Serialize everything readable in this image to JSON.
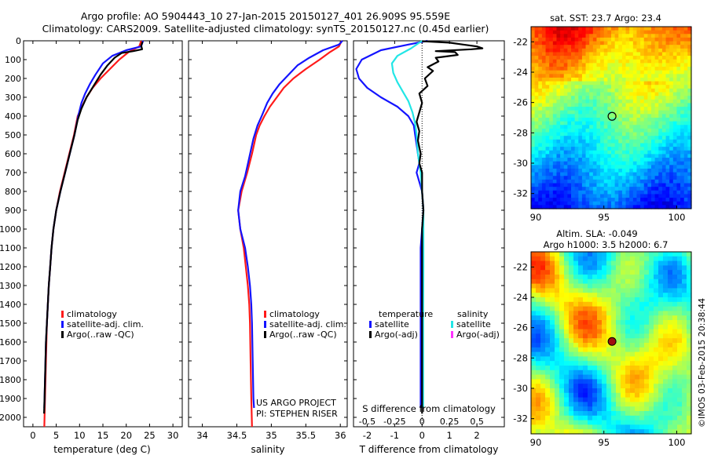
{
  "header": {
    "line1": "Argo profile: AO 5904443_10 27-Jan-2015 20150127_401 26.909S 95.559E",
    "line2": "Climatology: CARS2009. Satellite-adjusted climatology: synTS_20150127.nc (0.45d earlier)"
  },
  "colors": {
    "climatology": "#ff1a1a",
    "satellite": "#1414ff",
    "argo": "#000000",
    "sat_salinity": "#22e6e6",
    "argo_salinity": "#ff33ff"
  },
  "chart_data": [
    {
      "type": "line",
      "id": "temperature",
      "xlabel": "temperature (deg C)",
      "xlim": [
        -2,
        32
      ],
      "xticks": [
        0,
        5,
        10,
        15,
        20,
        25,
        30
      ],
      "ylim": [
        2050,
        0
      ],
      "yticks": [
        0,
        100,
        200,
        300,
        400,
        500,
        600,
        700,
        800,
        900,
        1000,
        1100,
        1200,
        1300,
        1400,
        1500,
        1600,
        1700,
        1800,
        1900,
        2000
      ],
      "legend": [
        "climatology",
        "satellite-adj. clim.",
        "Argo(..raw -QC)"
      ],
      "series": [
        {
          "name": "climatology",
          "color_key": "climatology",
          "points": [
            [
              23.2,
              0
            ],
            [
              22.8,
              30
            ],
            [
              20.5,
              60
            ],
            [
              18.5,
              100
            ],
            [
              16.5,
              150
            ],
            [
              14.5,
              200
            ],
            [
              12.8,
              250
            ],
            [
              11.5,
              300
            ],
            [
              10.5,
              350
            ],
            [
              9.6,
              400
            ],
            [
              8.8,
              500
            ],
            [
              7.8,
              600
            ],
            [
              6.8,
              700
            ],
            [
              5.8,
              800
            ],
            [
              5.0,
              900
            ],
            [
              4.4,
              1000
            ],
            [
              4.0,
              1100
            ],
            [
              3.7,
              1200
            ],
            [
              3.4,
              1300
            ],
            [
              3.2,
              1400
            ],
            [
              3.0,
              1500
            ],
            [
              2.9,
              1600
            ],
            [
              2.8,
              1700
            ],
            [
              2.7,
              1800
            ],
            [
              2.6,
              1900
            ],
            [
              2.5,
              2000
            ],
            [
              2.45,
              2050
            ]
          ]
        },
        {
          "name": "satellite-adj. clim.",
          "color_key": "satellite",
          "points": [
            [
              23.6,
              0
            ],
            [
              23.2,
              30
            ],
            [
              20.0,
              50
            ],
            [
              17.0,
              80
            ],
            [
              15.0,
              120
            ],
            [
              13.4,
              180
            ],
            [
              12.2,
              230
            ],
            [
              11.2,
              280
            ],
            [
              10.4,
              330
            ],
            [
              9.7,
              400
            ],
            [
              8.9,
              500
            ],
            [
              7.9,
              600
            ],
            [
              6.9,
              700
            ],
            [
              5.9,
              800
            ],
            [
              5.0,
              900
            ],
            [
              4.4,
              1000
            ],
            [
              4.0,
              1100
            ],
            [
              3.7,
              1200
            ],
            [
              3.4,
              1300
            ],
            [
              3.2,
              1400
            ],
            [
              3.0,
              1500
            ],
            [
              2.8,
              1600
            ],
            [
              2.7,
              1700
            ],
            [
              2.6,
              1800
            ],
            [
              2.5,
              1900
            ],
            [
              2.45,
              1950
            ]
          ]
        },
        {
          "name": "Argo(..raw -QC)",
          "color_key": "argo",
          "points": [
            [
              23.5,
              5
            ],
            [
              23.2,
              25
            ],
            [
              23.4,
              45
            ],
            [
              21.5,
              55
            ],
            [
              19.0,
              65
            ],
            [
              17.5,
              90
            ],
            [
              16.0,
              130
            ],
            [
              14.5,
              180
            ],
            [
              13.0,
              240
            ],
            [
              11.5,
              300
            ],
            [
              10.4,
              360
            ],
            [
              9.6,
              420
            ],
            [
              8.8,
              510
            ],
            [
              7.8,
              610
            ],
            [
              6.8,
              710
            ],
            [
              5.9,
              800
            ],
            [
              5.0,
              900
            ],
            [
              4.4,
              1000
            ],
            [
              4.0,
              1100
            ],
            [
              3.7,
              1200
            ],
            [
              3.4,
              1300
            ],
            [
              3.2,
              1400
            ],
            [
              3.0,
              1500
            ],
            [
              2.8,
              1600
            ],
            [
              2.7,
              1700
            ],
            [
              2.6,
              1800
            ],
            [
              2.5,
              1900
            ],
            [
              2.4,
              1980
            ]
          ]
        }
      ]
    },
    {
      "type": "line",
      "id": "salinity",
      "xlabel": "salinity",
      "xlim": [
        33.8,
        36.1
      ],
      "xticks": [
        34,
        34.5,
        35,
        35.5,
        36
      ],
      "xticklabels": [
        "34",
        "34.5",
        "35",
        "35.5",
        "36"
      ],
      "ylim": [
        2050,
        0
      ],
      "legend": [
        "climatology",
        "satellite-adj. clim.",
        "Argo(..raw -QC)"
      ],
      "series": [
        {
          "name": "climatology",
          "color_key": "climatology",
          "points": [
            [
              36.02,
              0
            ],
            [
              35.98,
              30
            ],
            [
              35.85,
              60
            ],
            [
              35.7,
              100
            ],
            [
              35.5,
              150
            ],
            [
              35.32,
              200
            ],
            [
              35.18,
              250
            ],
            [
              35.08,
              300
            ],
            [
              34.98,
              350
            ],
            [
              34.9,
              400
            ],
            [
              34.83,
              450
            ],
            [
              34.78,
              500
            ],
            [
              34.72,
              600
            ],
            [
              34.65,
              700
            ],
            [
              34.57,
              800
            ],
            [
              34.52,
              900
            ],
            [
              34.55,
              1000
            ],
            [
              34.6,
              1100
            ],
            [
              34.63,
              1200
            ],
            [
              34.66,
              1300
            ],
            [
              34.68,
              1400
            ],
            [
              34.69,
              1500
            ],
            [
              34.7,
              1700
            ],
            [
              34.71,
              1900
            ],
            [
              34.72,
              2050
            ]
          ]
        },
        {
          "name": "satellite-adj. clim.",
          "color_key": "satellite",
          "points": [
            [
              36.03,
              0
            ],
            [
              35.98,
              20
            ],
            [
              35.75,
              50
            ],
            [
              35.55,
              90
            ],
            [
              35.38,
              130
            ],
            [
              35.25,
              180
            ],
            [
              35.12,
              230
            ],
            [
              35.02,
              280
            ],
            [
              34.94,
              330
            ],
            [
              34.86,
              400
            ],
            [
              34.8,
              450
            ],
            [
              34.74,
              520
            ],
            [
              34.68,
              620
            ],
            [
              34.62,
              720
            ],
            [
              34.55,
              800
            ],
            [
              34.52,
              900
            ],
            [
              34.55,
              1000
            ],
            [
              34.62,
              1100
            ],
            [
              34.66,
              1200
            ],
            [
              34.69,
              1300
            ],
            [
              34.71,
              1400
            ],
            [
              34.72,
              1500
            ],
            [
              34.73,
              1700
            ],
            [
              34.74,
              1900
            ],
            [
              34.75,
              1950
            ]
          ]
        }
      ]
    },
    {
      "type": "line",
      "id": "difference",
      "xlabel": "T difference from climatology",
      "xlabel_top": "S difference from climatology",
      "xlim": [
        -2.5,
        3.0
      ],
      "xticks": [
        -2,
        -1,
        0,
        1,
        2
      ],
      "top_ticks": [
        -0.5,
        -0.25,
        0,
        0.25,
        0.5
      ],
      "top_ticklabels": [
        "-0.5",
        "-0.25",
        "0",
        "0.25",
        "0.5"
      ],
      "top_scale": 4,
      "ylim": [
        2050,
        0
      ],
      "legend_temperature": {
        "title": "temperature",
        "items": [
          "satellite",
          "Argo(-adj)"
        ]
      },
      "legend_salinity": {
        "title": "salinity",
        "items": [
          "satellite",
          "Argo(-adj)"
        ]
      },
      "series": [
        {
          "name": "temperature satellite",
          "color_key": "satellite",
          "points": [
            [
              0.2,
              0
            ],
            [
              -0.5,
              20
            ],
            [
              -1.5,
              50
            ],
            [
              -2.2,
              100
            ],
            [
              -2.4,
              150
            ],
            [
              -2.3,
              200
            ],
            [
              -2.0,
              250
            ],
            [
              -1.5,
              300
            ],
            [
              -0.9,
              350
            ],
            [
              -0.5,
              400
            ],
            [
              -0.3,
              450
            ],
            [
              -0.25,
              500
            ],
            [
              -0.2,
              550
            ],
            [
              -0.15,
              600
            ],
            [
              -0.1,
              650
            ],
            [
              -0.2,
              700
            ],
            [
              -0.1,
              750
            ],
            [
              0.0,
              800
            ],
            [
              0.05,
              900
            ],
            [
              0.0,
              1000
            ],
            [
              -0.05,
              1100
            ],
            [
              -0.05,
              1200
            ],
            [
              -0.05,
              1300
            ],
            [
              -0.05,
              1400
            ],
            [
              -0.05,
              1500
            ],
            [
              -0.05,
              1600
            ],
            [
              -0.05,
              1700
            ],
            [
              -0.05,
              1800
            ],
            [
              -0.05,
              1900
            ],
            [
              -0.05,
              1950
            ]
          ]
        },
        {
          "name": "salinity satellite",
          "color_key": "sat_salinity",
          "points": [
            [
              0.0,
              0
            ],
            [
              -0.4,
              40
            ],
            [
              -0.9,
              80
            ],
            [
              -1.1,
              120
            ],
            [
              -1.05,
              170
            ],
            [
              -0.9,
              220
            ],
            [
              -0.7,
              270
            ],
            [
              -0.5,
              320
            ],
            [
              -0.35,
              380
            ],
            [
              -0.25,
              440
            ],
            [
              -0.2,
              500
            ],
            [
              -0.15,
              600
            ],
            [
              -0.05,
              700
            ],
            [
              0.0,
              800
            ],
            [
              0.05,
              900
            ],
            [
              0.05,
              1000
            ],
            [
              0.05,
              1200
            ],
            [
              0.04,
              1500
            ],
            [
              0.04,
              1800
            ],
            [
              0.04,
              1950
            ]
          ]
        },
        {
          "name": "temperature Argo",
          "color_key": "argo",
          "points": [
            [
              0.0,
              2
            ],
            [
              1.0,
              10
            ],
            [
              1.5,
              20
            ],
            [
              2.0,
              30
            ],
            [
              2.2,
              40
            ],
            [
              1.8,
              45
            ],
            [
              0.5,
              55
            ],
            [
              1.2,
              60
            ],
            [
              1.3,
              75
            ],
            [
              0.5,
              90
            ],
            [
              0.6,
              110
            ],
            [
              0.2,
              140
            ],
            [
              0.4,
              160
            ],
            [
              0.1,
              200
            ],
            [
              0.2,
              240
            ],
            [
              -0.1,
              280
            ],
            [
              0.0,
              330
            ],
            [
              -0.1,
              380
            ],
            [
              -0.2,
              430
            ],
            [
              -0.1,
              480
            ],
            [
              -0.15,
              530
            ],
            [
              -0.05,
              600
            ],
            [
              -0.1,
              650
            ],
            [
              0.0,
              700
            ],
            [
              0.0,
              800
            ],
            [
              0.05,
              900
            ],
            [
              0.0,
              1000
            ],
            [
              0.0,
              1200
            ],
            [
              0.0,
              1500
            ],
            [
              0.0,
              1800
            ],
            [
              0.0,
              1980
            ]
          ]
        }
      ]
    },
    {
      "type": "heatmap",
      "id": "sst_map",
      "title": "sat. SST: 23.7  Argo: 23.4",
      "xlim": [
        90,
        101
      ],
      "ylim": [
        -33,
        -21
      ],
      "xticks": [
        90,
        95,
        100
      ],
      "yticks": [
        -22,
        -24,
        -26,
        -28,
        -30,
        -32
      ],
      "marker": {
        "lon": 95.56,
        "lat": -26.91
      }
    },
    {
      "type": "heatmap",
      "id": "sla_map",
      "title_line1": "Altim. SLA: -0.049",
      "title_line2": "Argo h1000: 3.5 h2000: 6.7",
      "xlim": [
        90,
        101
      ],
      "ylim": [
        -33,
        -21
      ],
      "xticks": [
        90,
        95,
        100
      ],
      "yticks": [
        -22,
        -24,
        -26,
        -28,
        -30,
        -32
      ],
      "marker": {
        "lon": 95.56,
        "lat": -26.91
      }
    }
  ],
  "labels": {
    "legend_climatology": "climatology",
    "legend_satellite": "satellite-adj. clim.",
    "legend_argo": "Argo(..raw -QC)",
    "project_line1": "US ARGO PROJECT",
    "project_line2": "PI: STEPHEN RISER",
    "side_credit": "©IMOS 03-Feb-2015 20:38:44"
  }
}
